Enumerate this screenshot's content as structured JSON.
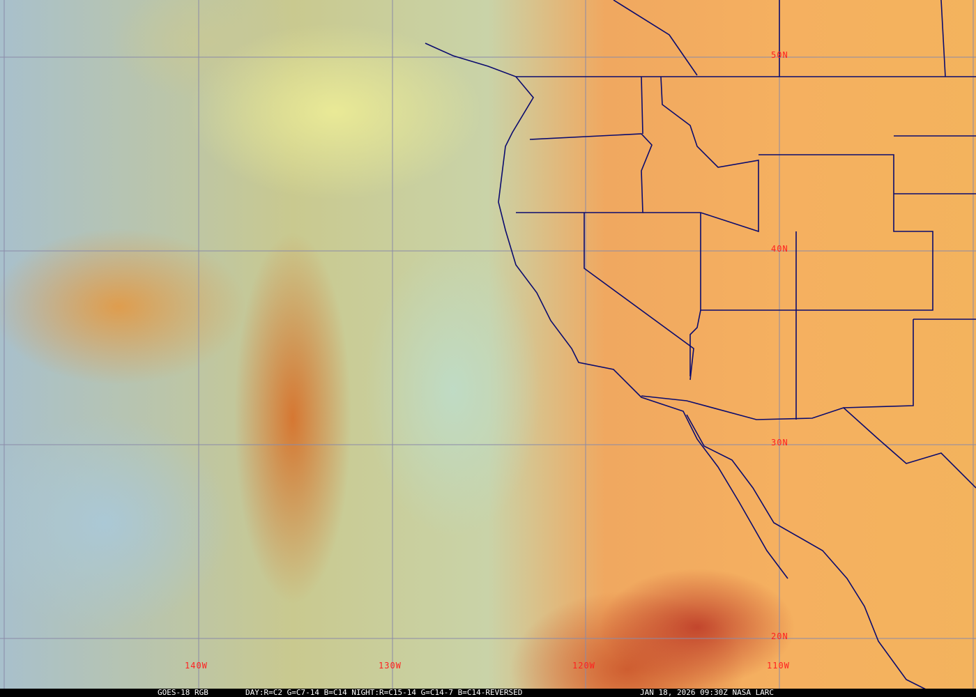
{
  "caption": {
    "product": "GOES-18 RGB",
    "recipe": "DAY:R=C2 G=C7-14 B=C14 NIGHT:R=C15-14 G=C14-7 B=C14-REVERSED",
    "timestamp": "JAN 18, 2026 09:30Z NASA LARC"
  },
  "latitude_labels": [
    "50N",
    "40N",
    "30N",
    "20N"
  ],
  "longitude_labels": [
    "140W",
    "130W",
    "120W",
    "110W"
  ],
  "colors": {
    "grid": "#8a8aa8",
    "borders": "#0a0a6e",
    "labels": "#ff2020"
  }
}
